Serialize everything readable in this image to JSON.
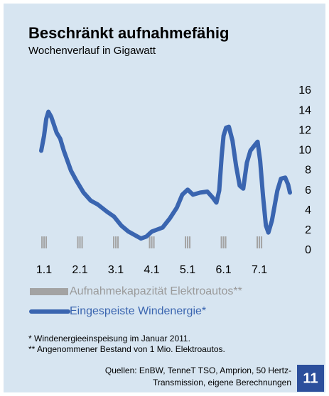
{
  "chart_data": {
    "type": "line",
    "title": "Beschränkt aufnahmefähig",
    "subtitle": "Wochenverlauf in Gigawatt",
    "xlim": [
      -0.08,
      6.85
    ],
    "xticks": [
      {
        "value": 0,
        "label": "1.1"
      },
      {
        "value": 1,
        "label": "2.1"
      },
      {
        "value": 2,
        "label": "3.1"
      },
      {
        "value": 3,
        "label": "4.1"
      },
      {
        "value": 4,
        "label": "5.1"
      },
      {
        "value": 5,
        "label": "6.1"
      },
      {
        "value": 6,
        "label": "7.1"
      }
    ],
    "ylim": [
      0,
      16
    ],
    "yticks": [
      0,
      2,
      4,
      6,
      8,
      10,
      12,
      14,
      16
    ],
    "series": [
      {
        "name": "Aufnahmekapazität Elektroautos**",
        "type": "bar",
        "color": "#a3a3a3",
        "x": [
          0,
          1,
          2,
          3,
          4,
          5,
          6
        ],
        "values": [
          1.2,
          1.2,
          1.2,
          1.2,
          1.2,
          1.2,
          1.2
        ]
      },
      {
        "name": "Eingespeiste Windenergie*",
        "type": "line",
        "color": "#3a65b0",
        "x": [
          -0.08,
          0,
          0.06,
          0.12,
          0.2,
          0.35,
          0.45,
          0.55,
          0.75,
          0.9,
          1.1,
          1.3,
          1.5,
          1.75,
          1.95,
          2.15,
          2.35,
          2.55,
          2.7,
          2.85,
          3.0,
          3.15,
          3.3,
          3.5,
          3.7,
          3.85,
          4.0,
          4.15,
          4.35,
          4.55,
          4.7,
          4.8,
          4.88,
          4.95,
          5.0,
          5.07,
          5.15,
          5.25,
          5.35,
          5.45,
          5.55,
          5.65,
          5.75,
          5.88,
          5.95,
          6.02,
          6.1,
          6.18,
          6.25,
          6.35,
          6.5,
          6.6,
          6.72,
          6.8,
          6.85
        ],
        "values": [
          10,
          11.5,
          13.2,
          13.9,
          13.4,
          11.8,
          11.2,
          10,
          8,
          7,
          5.8,
          5,
          4.6,
          3.9,
          3.4,
          2.5,
          1.9,
          1.5,
          1.2,
          1.4,
          1.9,
          2.1,
          2.3,
          3.2,
          4.3,
          5.6,
          6.1,
          5.6,
          5.8,
          5.9,
          5.3,
          4.8,
          6,
          9.5,
          11.5,
          12.3,
          12.4,
          11,
          8.5,
          6.5,
          6.2,
          8.8,
          10,
          10.6,
          10.9,
          9,
          5.5,
          2.5,
          1.8,
          3,
          6,
          7.2,
          7.3,
          6.6,
          5.8
        ]
      }
    ]
  },
  "footnotes": [
    "* Windenergieeinspeisung im Januar 2011.",
    "** Angenommener Bestand von 1 Mio. Elektroautos."
  ],
  "sources": [
    "Quellen: EnBW, TenneT TSO, Amprion, 50 Hertz-",
    "Transmission, eigene Berechnungen"
  ],
  "page_number": "11"
}
